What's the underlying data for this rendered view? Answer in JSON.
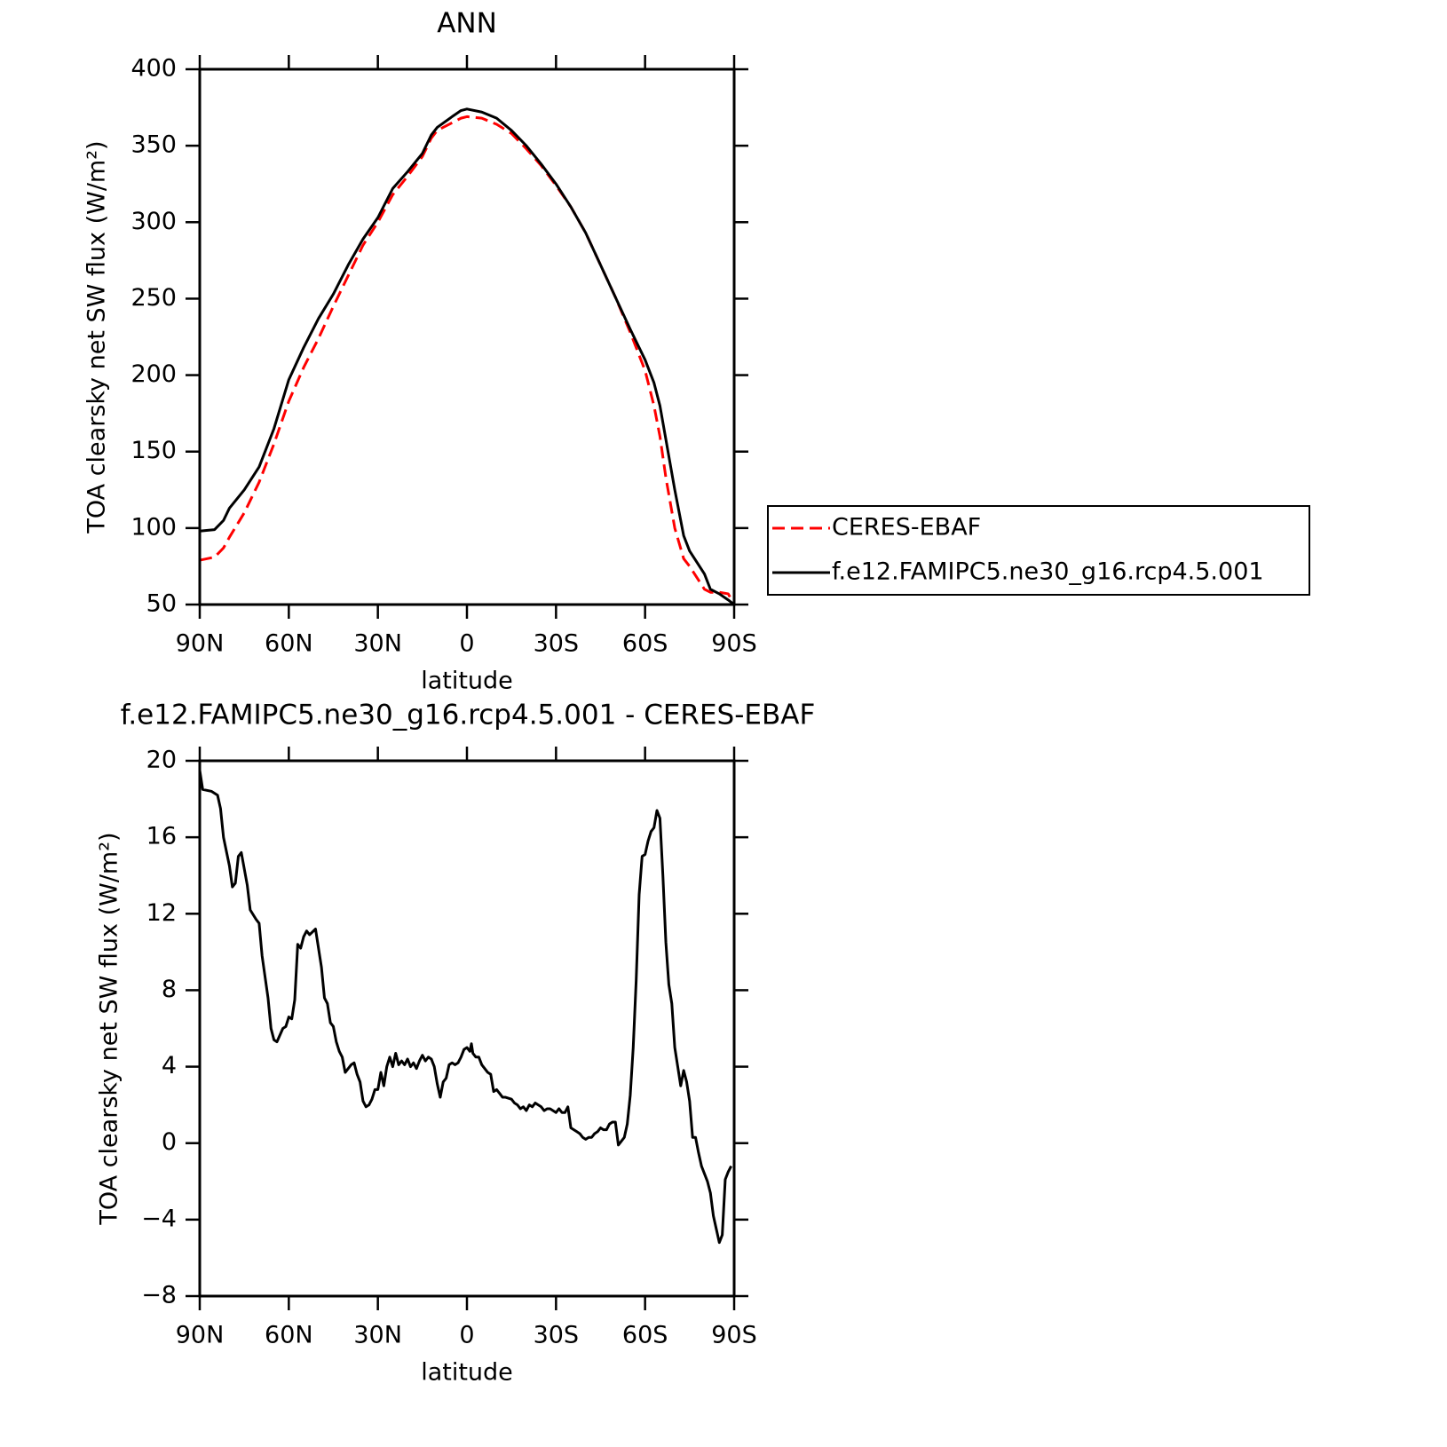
{
  "chart_data": [
    {
      "type": "line",
      "title": "ANN",
      "xlabel": "latitude",
      "ylabel": "TOA clearsky net SW flux (W/m²)",
      "x": [
        90,
        85,
        82,
        80,
        75,
        70,
        65,
        60,
        55,
        50,
        45,
        40,
        35,
        30,
        25,
        20,
        15,
        12,
        10,
        5,
        2,
        0,
        -5,
        -10,
        -15,
        -20,
        -25,
        -30,
        -35,
        -40,
        -45,
        -50,
        -55,
        -60,
        -63,
        -65,
        -67,
        -70,
        -73,
        -75,
        -80,
        -82,
        -85,
        -88,
        -90
      ],
      "series": [
        {
          "name": "CERES-EBAF",
          "color": "#ff0000",
          "line_style": "dashed",
          "values": [
            79,
            81,
            87,
            94,
            110,
            130,
            155,
            183,
            205,
            224,
            245,
            265,
            285,
            300,
            318,
            330,
            343,
            355,
            360,
            365,
            368,
            369,
            368,
            364,
            358,
            348,
            337,
            324,
            310,
            293,
            272,
            251,
            228,
            203,
            180,
            160,
            133,
            100,
            80,
            75,
            60,
            58,
            58,
            57,
            50
          ]
        },
        {
          "name": "f.e12.FAMIPC5.ne30_g16.rcp4.5.001",
          "color": "#000000",
          "line_style": "solid",
          "values": [
            98,
            99,
            105,
            113,
            125,
            140,
            165,
            197,
            218,
            237,
            253,
            272,
            289,
            303,
            322,
            333,
            345,
            357,
            362,
            369,
            373,
            374,
            372,
            368,
            360,
            350,
            338,
            325,
            310,
            293,
            272,
            251,
            230,
            210,
            195,
            180,
            158,
            125,
            95,
            85,
            70,
            60,
            57,
            53,
            50
          ]
        }
      ],
      "xlim": [
        90,
        -90
      ],
      "xticks": [
        {
          "value": 90,
          "label": "90N"
        },
        {
          "value": 60,
          "label": "60N"
        },
        {
          "value": 30,
          "label": "30N"
        },
        0,
        {
          "value": -30,
          "label": "30S"
        },
        {
          "value": -60,
          "label": "60S"
        },
        {
          "value": -90,
          "label": "90S"
        }
      ],
      "ylim": [
        50,
        400
      ],
      "yticks": [
        50,
        100,
        150,
        200,
        250,
        300,
        350,
        400
      ],
      "legend": "right"
    },
    {
      "type": "line",
      "title": "f.e12.FAMIPC5.ne30_g16.rcp4.5.001 - CERES-EBAF",
      "xlabel": "latitude",
      "ylabel": "TOA clearsky net SW flux (W/m²)",
      "x": [
        90,
        89,
        86,
        84,
        83,
        82,
        80,
        79,
        78,
        77,
        76,
        74,
        73,
        71,
        70,
        69,
        67,
        66,
        65,
        64,
        62,
        61,
        60,
        59,
        58,
        57,
        56,
        55,
        54,
        53,
        51,
        49,
        48,
        47,
        46,
        45,
        44,
        43,
        42,
        41,
        39,
        38,
        37,
        36,
        35,
        34,
        33,
        32,
        31,
        30,
        29,
        28,
        27,
        26,
        25,
        24,
        23,
        22,
        21,
        20,
        19,
        18,
        17,
        16,
        15,
        14,
        13,
        12,
        11,
        10,
        9,
        8,
        7,
        6,
        5,
        4,
        3,
        2,
        1,
        0,
        -1,
        -1.5,
        -2,
        -3,
        -4,
        -5,
        -7,
        -8,
        -9,
        -10,
        -11,
        -12,
        -13,
        -15,
        -16,
        -17,
        -18,
        -19,
        -20,
        -21,
        -22,
        -23,
        -24,
        -25,
        -26,
        -27,
        -28,
        -29,
        -30,
        -31,
        -32,
        -33,
        -34,
        -35,
        -36,
        -37,
        -38,
        -39,
        -40,
        -41,
        -42,
        -43,
        -44,
        -45,
        -46,
        -47,
        -48,
        -49,
        -50,
        -51,
        -52,
        -53,
        -54,
        -55,
        -56,
        -57,
        -58,
        -59,
        -60,
        -61,
        -62,
        -63,
        -64,
        -65,
        -66,
        -67,
        -68,
        -69,
        -70,
        -71,
        -72,
        -73,
        -74,
        -75,
        -76,
        -77,
        -78,
        -79,
        -80,
        -81,
        -82,
        -83,
        -84,
        -85,
        -86,
        -87,
        -88,
        -89
      ],
      "series": [
        {
          "color": "#000000",
          "line_style": "solid",
          "values": [
            19.5,
            18.5,
            18.4,
            18.2,
            17.5,
            16,
            14.5,
            13.4,
            13.6,
            15,
            15.2,
            13.5,
            12.2,
            11.7,
            11.5,
            9.8,
            7.6,
            6,
            5.4,
            5.3,
            6,
            6.1,
            6.6,
            6.5,
            7.5,
            10.4,
            10.2,
            10.8,
            11.1,
            10.9,
            11.2,
            9.2,
            7.6,
            7.3,
            6.3,
            6.1,
            5.3,
            4.8,
            4.5,
            3.7,
            4.1,
            4.2,
            3.6,
            3.2,
            2.2,
            1.9,
            2.0,
            2.3,
            2.8,
            2.8,
            3.7,
            3.0,
            4.0,
            4.5,
            4.0,
            4.7,
            4.1,
            4.3,
            4.1,
            4.4,
            4.0,
            4.2,
            3.9,
            4.3,
            4.6,
            4.3,
            4.5,
            4.4,
            4.0,
            3.1,
            2.4,
            3.2,
            3.4,
            4.1,
            4.2,
            4.1,
            4.2,
            4.5,
            4.9,
            5.0,
            4.8,
            5.2,
            4.7,
            4.5,
            4.5,
            4.1,
            3.7,
            3.6,
            2.7,
            2.8,
            2.6,
            2.4,
            2.4,
            2.3,
            2.1,
            2.0,
            1.8,
            1.9,
            1.7,
            2.0,
            1.9,
            2.1,
            2.0,
            1.9,
            1.7,
            1.8,
            1.8,
            1.7,
            1.6,
            1.8,
            1.6,
            1.6,
            1.9,
            0.8,
            0.7,
            0.6,
            0.5,
            0.3,
            0.2,
            0.3,
            0.3,
            0.5,
            0.6,
            0.8,
            0.7,
            0.7,
            1.0,
            1.1,
            1.1,
            -0.1,
            0.1,
            0.3,
            1.0,
            2.5,
            5.0,
            8.5,
            13.0,
            15.0,
            15.1,
            15.8,
            16.3,
            16.5,
            17.4,
            17.0,
            14.0,
            10.5,
            8.3,
            7.3,
            5.0,
            4.0,
            3.0,
            3.8,
            3.2,
            2.2,
            0.3,
            0.3,
            -0.5,
            -1.2,
            -1.6,
            -2.0,
            -2.6,
            -3.8,
            -4.5,
            -5.2,
            -4.8,
            -1.9,
            -1.5,
            -1.2
          ]
        }
      ],
      "xlim": [
        90,
        -90
      ],
      "xticks": [
        {
          "value": 90,
          "label": "90N"
        },
        {
          "value": 60,
          "label": "60N"
        },
        {
          "value": 30,
          "label": "30N"
        },
        0,
        {
          "value": -30,
          "label": "30S"
        },
        {
          "value": -60,
          "label": "60S"
        },
        {
          "value": -90,
          "label": "90S"
        }
      ],
      "ylim": [
        -8,
        20
      ],
      "yticks": [
        -8,
        -4,
        0,
        4,
        8,
        12,
        16,
        20
      ]
    }
  ]
}
